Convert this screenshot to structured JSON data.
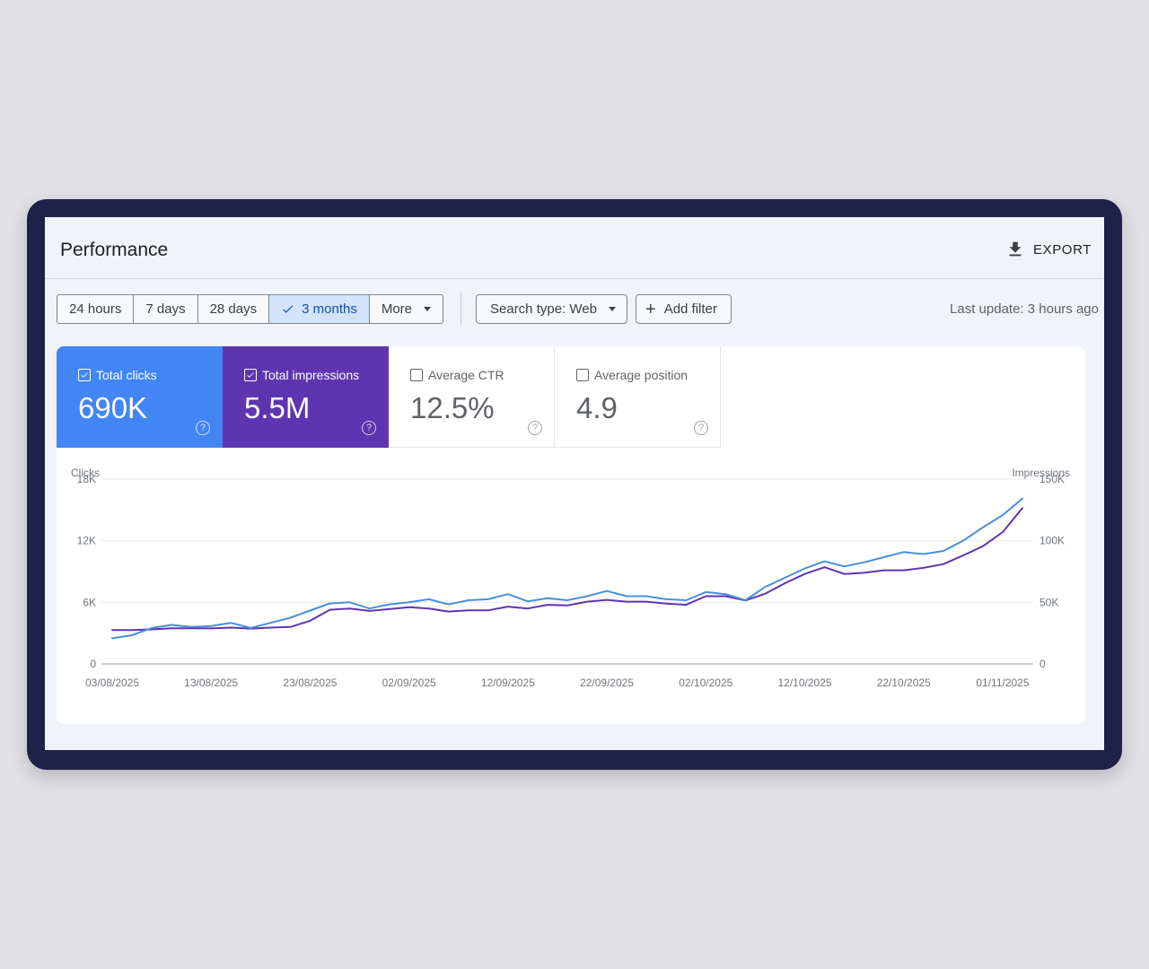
{
  "header": {
    "title": "Performance",
    "export_label": "EXPORT"
  },
  "toolbar": {
    "date_ranges": [
      "24 hours",
      "7 days",
      "28 days",
      "3 months"
    ],
    "selected_range": "3 months",
    "more_label": "More",
    "search_type_label": "Search type: Web",
    "add_filter_label": "Add filter",
    "last_update": "Last update: 3 hours ago"
  },
  "metrics": [
    {
      "label": "Total clicks",
      "value": "690K",
      "checked": true,
      "color": "#4285f4"
    },
    {
      "label": "Total impressions",
      "value": "5.5M",
      "checked": true,
      "color": "#5e35b1"
    },
    {
      "label": "Average CTR",
      "value": "12.5%",
      "checked": false
    },
    {
      "label": "Average position",
      "value": "4.9",
      "checked": false
    }
  ],
  "chart_data": {
    "type": "line",
    "left_axis": {
      "label": "Clicks",
      "ticks": [
        "0",
        "6K",
        "12K",
        "18K"
      ],
      "range": [
        0,
        18000
      ]
    },
    "right_axis": {
      "label": "Impressions",
      "ticks": [
        "0",
        "50K",
        "100K",
        "150K"
      ],
      "range": [
        0,
        150000
      ]
    },
    "x_tick_labels": [
      "03/08/2025",
      "13/08/2025",
      "23/08/2025",
      "02/09/2025",
      "12/09/2025",
      "22/09/2025",
      "02/10/2025",
      "12/10/2025",
      "22/10/2025",
      "01/11/2025"
    ],
    "x_range": [
      0,
      92
    ],
    "grid": true,
    "series": [
      {
        "color": "#4a8fd9",
        "axis": "left",
        "x": [
          0,
          2,
          4,
          6,
          8,
          10,
          12,
          14,
          16,
          18,
          20,
          22,
          24,
          26,
          28,
          30,
          32,
          34,
          36,
          38,
          40,
          42,
          44,
          46,
          48,
          50,
          52,
          54,
          56,
          58,
          60,
          62,
          64,
          66,
          68,
          70,
          72,
          74,
          76,
          78,
          80,
          82,
          84,
          86,
          88,
          90,
          92
        ],
        "y": [
          2500,
          2800,
          3500,
          3800,
          3600,
          3700,
          4000,
          3500,
          4000,
          4500,
          5200,
          5900,
          6000,
          5400,
          5800,
          6000,
          6300,
          5800,
          6200,
          6300,
          6800,
          6100,
          6400,
          6200,
          6600,
          7100,
          6600,
          6600,
          6300,
          6200,
          7000,
          6800,
          6200,
          7500,
          8400,
          9300,
          10000,
          9500,
          9900,
          10400,
          10900,
          10700,
          11000,
          12000,
          13300,
          14500,
          16100
        ]
      },
      {
        "color": "#5e35b1",
        "axis": "right",
        "x": [
          0,
          2,
          4,
          6,
          8,
          10,
          12,
          14,
          16,
          18,
          20,
          22,
          24,
          26,
          28,
          30,
          32,
          34,
          36,
          38,
          40,
          42,
          44,
          46,
          48,
          50,
          52,
          54,
          56,
          58,
          60,
          62,
          64,
          66,
          68,
          70,
          72,
          74,
          76,
          78,
          80,
          82,
          84,
          86,
          88,
          90,
          92
        ],
        "y": [
          27500,
          27500,
          28000,
          29000,
          29000,
          28800,
          29500,
          28700,
          29500,
          30000,
          35000,
          44000,
          45000,
          43000,
          44500,
          46000,
          45000,
          42500,
          43500,
          43500,
          46500,
          45000,
          48000,
          47500,
          50500,
          52000,
          50500,
          50500,
          49000,
          48000,
          55000,
          55000,
          51500,
          57000,
          65500,
          73000,
          78500,
          73000,
          74000,
          76000,
          76000,
          78000,
          81000,
          88000,
          95500,
          107000,
          126500
        ]
      }
    ]
  }
}
